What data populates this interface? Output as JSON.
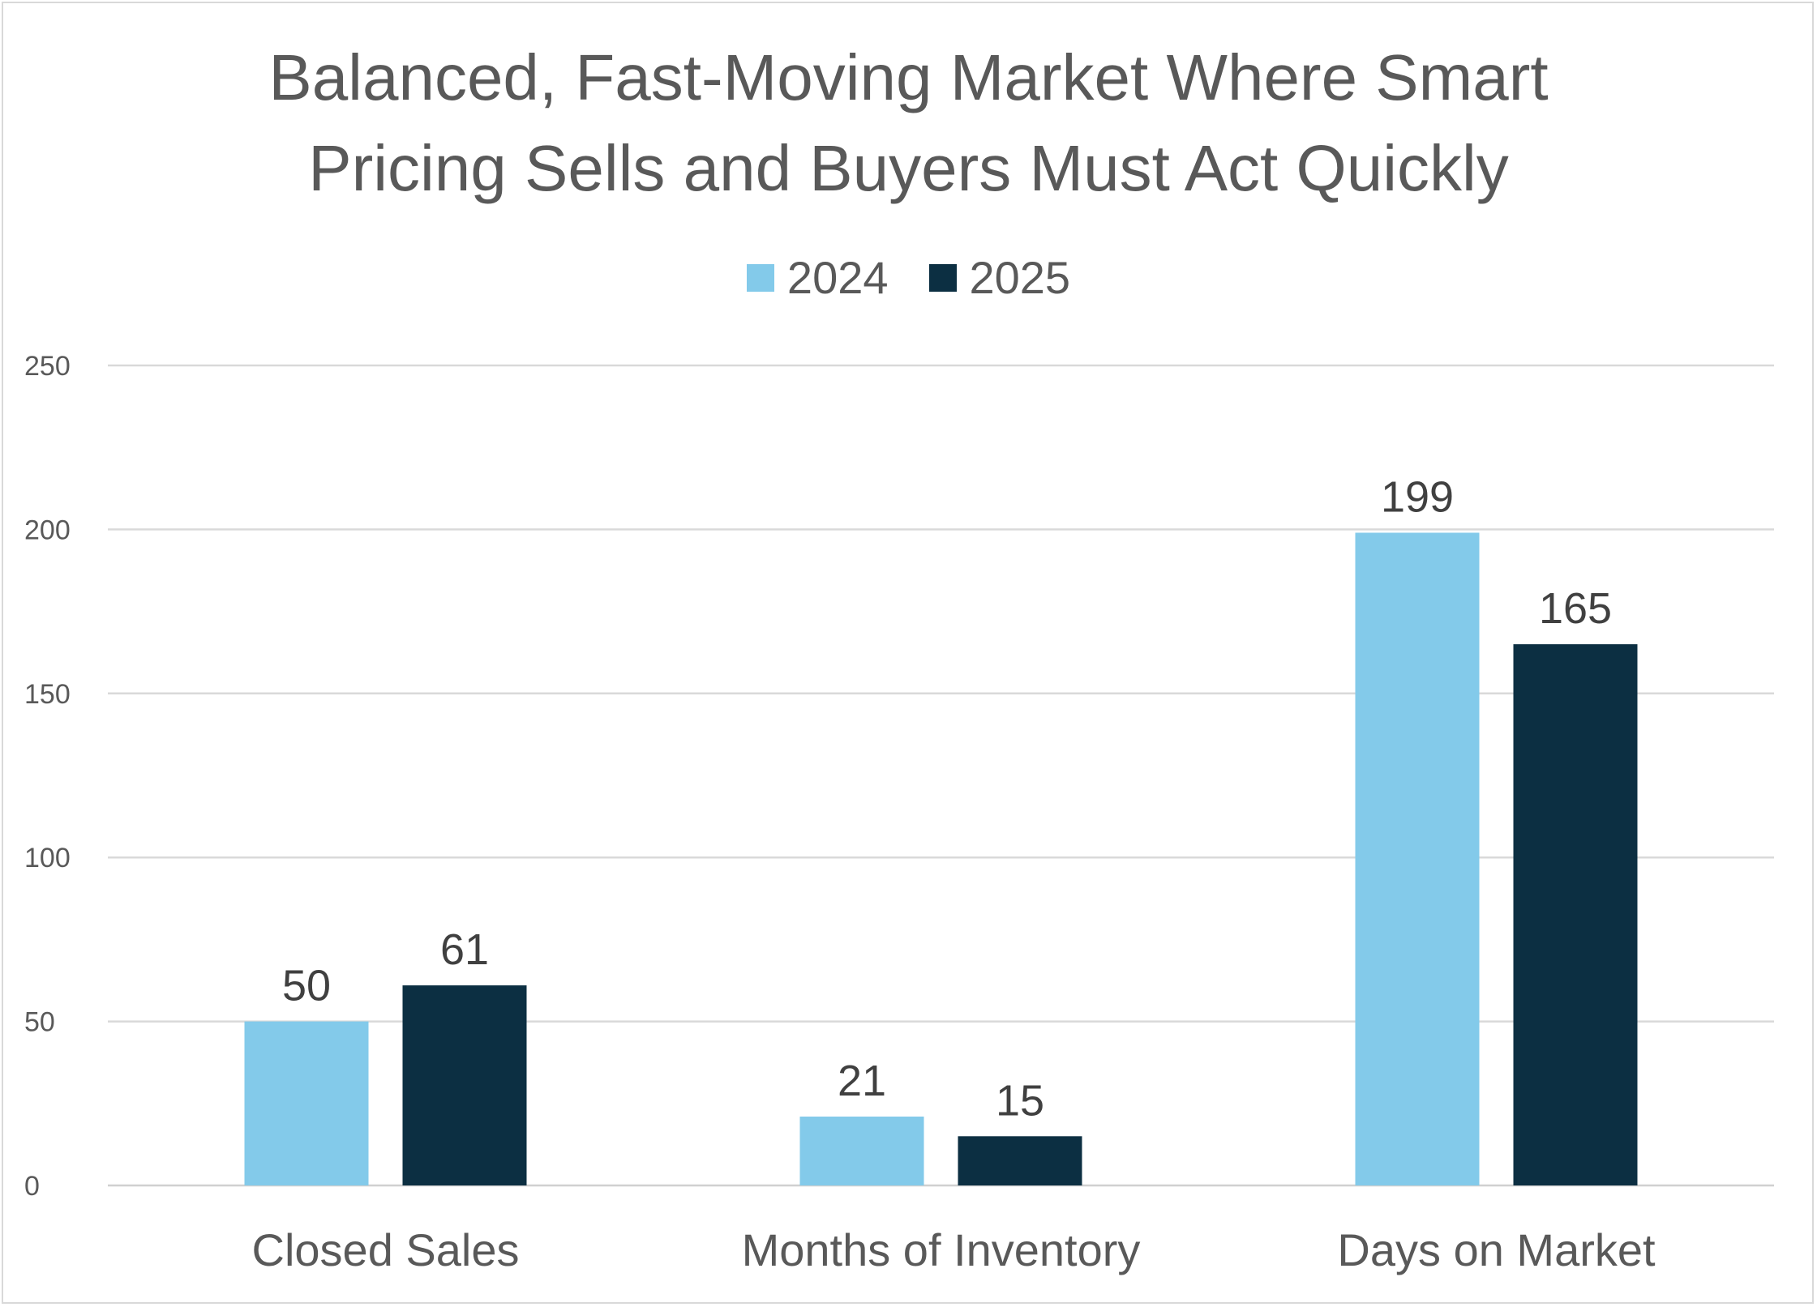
{
  "chart_data": {
    "type": "bar",
    "title_lines": [
      "Balanced, Fast-Moving Market Where Smart",
      "Pricing Sells and Buyers Must Act Quickly"
    ],
    "categories": [
      "Closed Sales",
      "Months of Inventory",
      "Days on Market"
    ],
    "series": [
      {
        "name": "2024",
        "values": [
          50,
          21,
          199
        ],
        "color": "#83caea"
      },
      {
        "name": "2025",
        "values": [
          61,
          15,
          165
        ],
        "color": "#0c2f42"
      }
    ],
    "yticks": [
      "0",
      "50",
      "100",
      "150",
      "200",
      "250"
    ],
    "ylim": [
      0,
      250
    ],
    "grid": true,
    "legend_position": "top",
    "data_labels": true
  }
}
